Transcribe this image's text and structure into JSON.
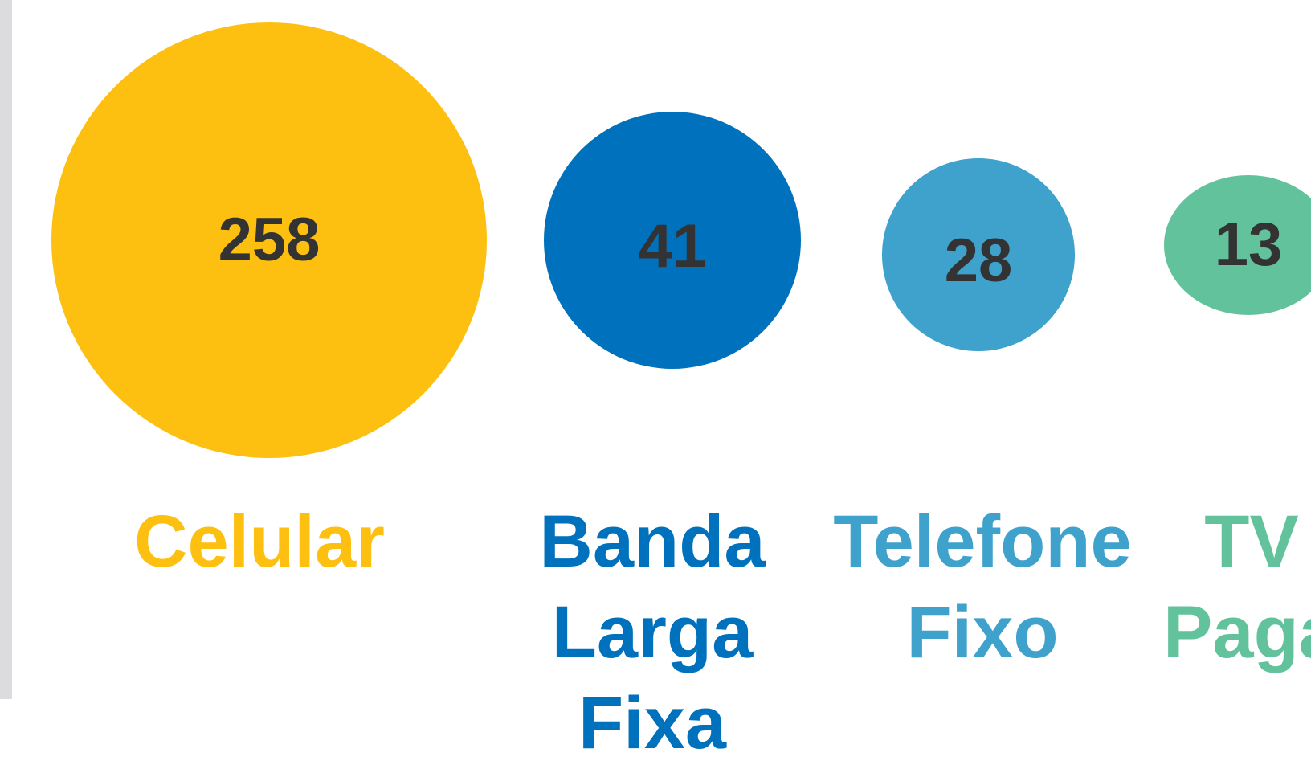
{
  "items": [
    {
      "value": 258,
      "label": "Celular",
      "color": "#FDC010"
    },
    {
      "value": 41,
      "label": "Banda Larga Fixa",
      "color": "#0071BC"
    },
    {
      "value": 28,
      "label": "Telefone Fixo",
      "color": "#3FA2CC"
    },
    {
      "value": 13,
      "label": "TV Paga",
      "color": "#62C29C"
    }
  ]
}
